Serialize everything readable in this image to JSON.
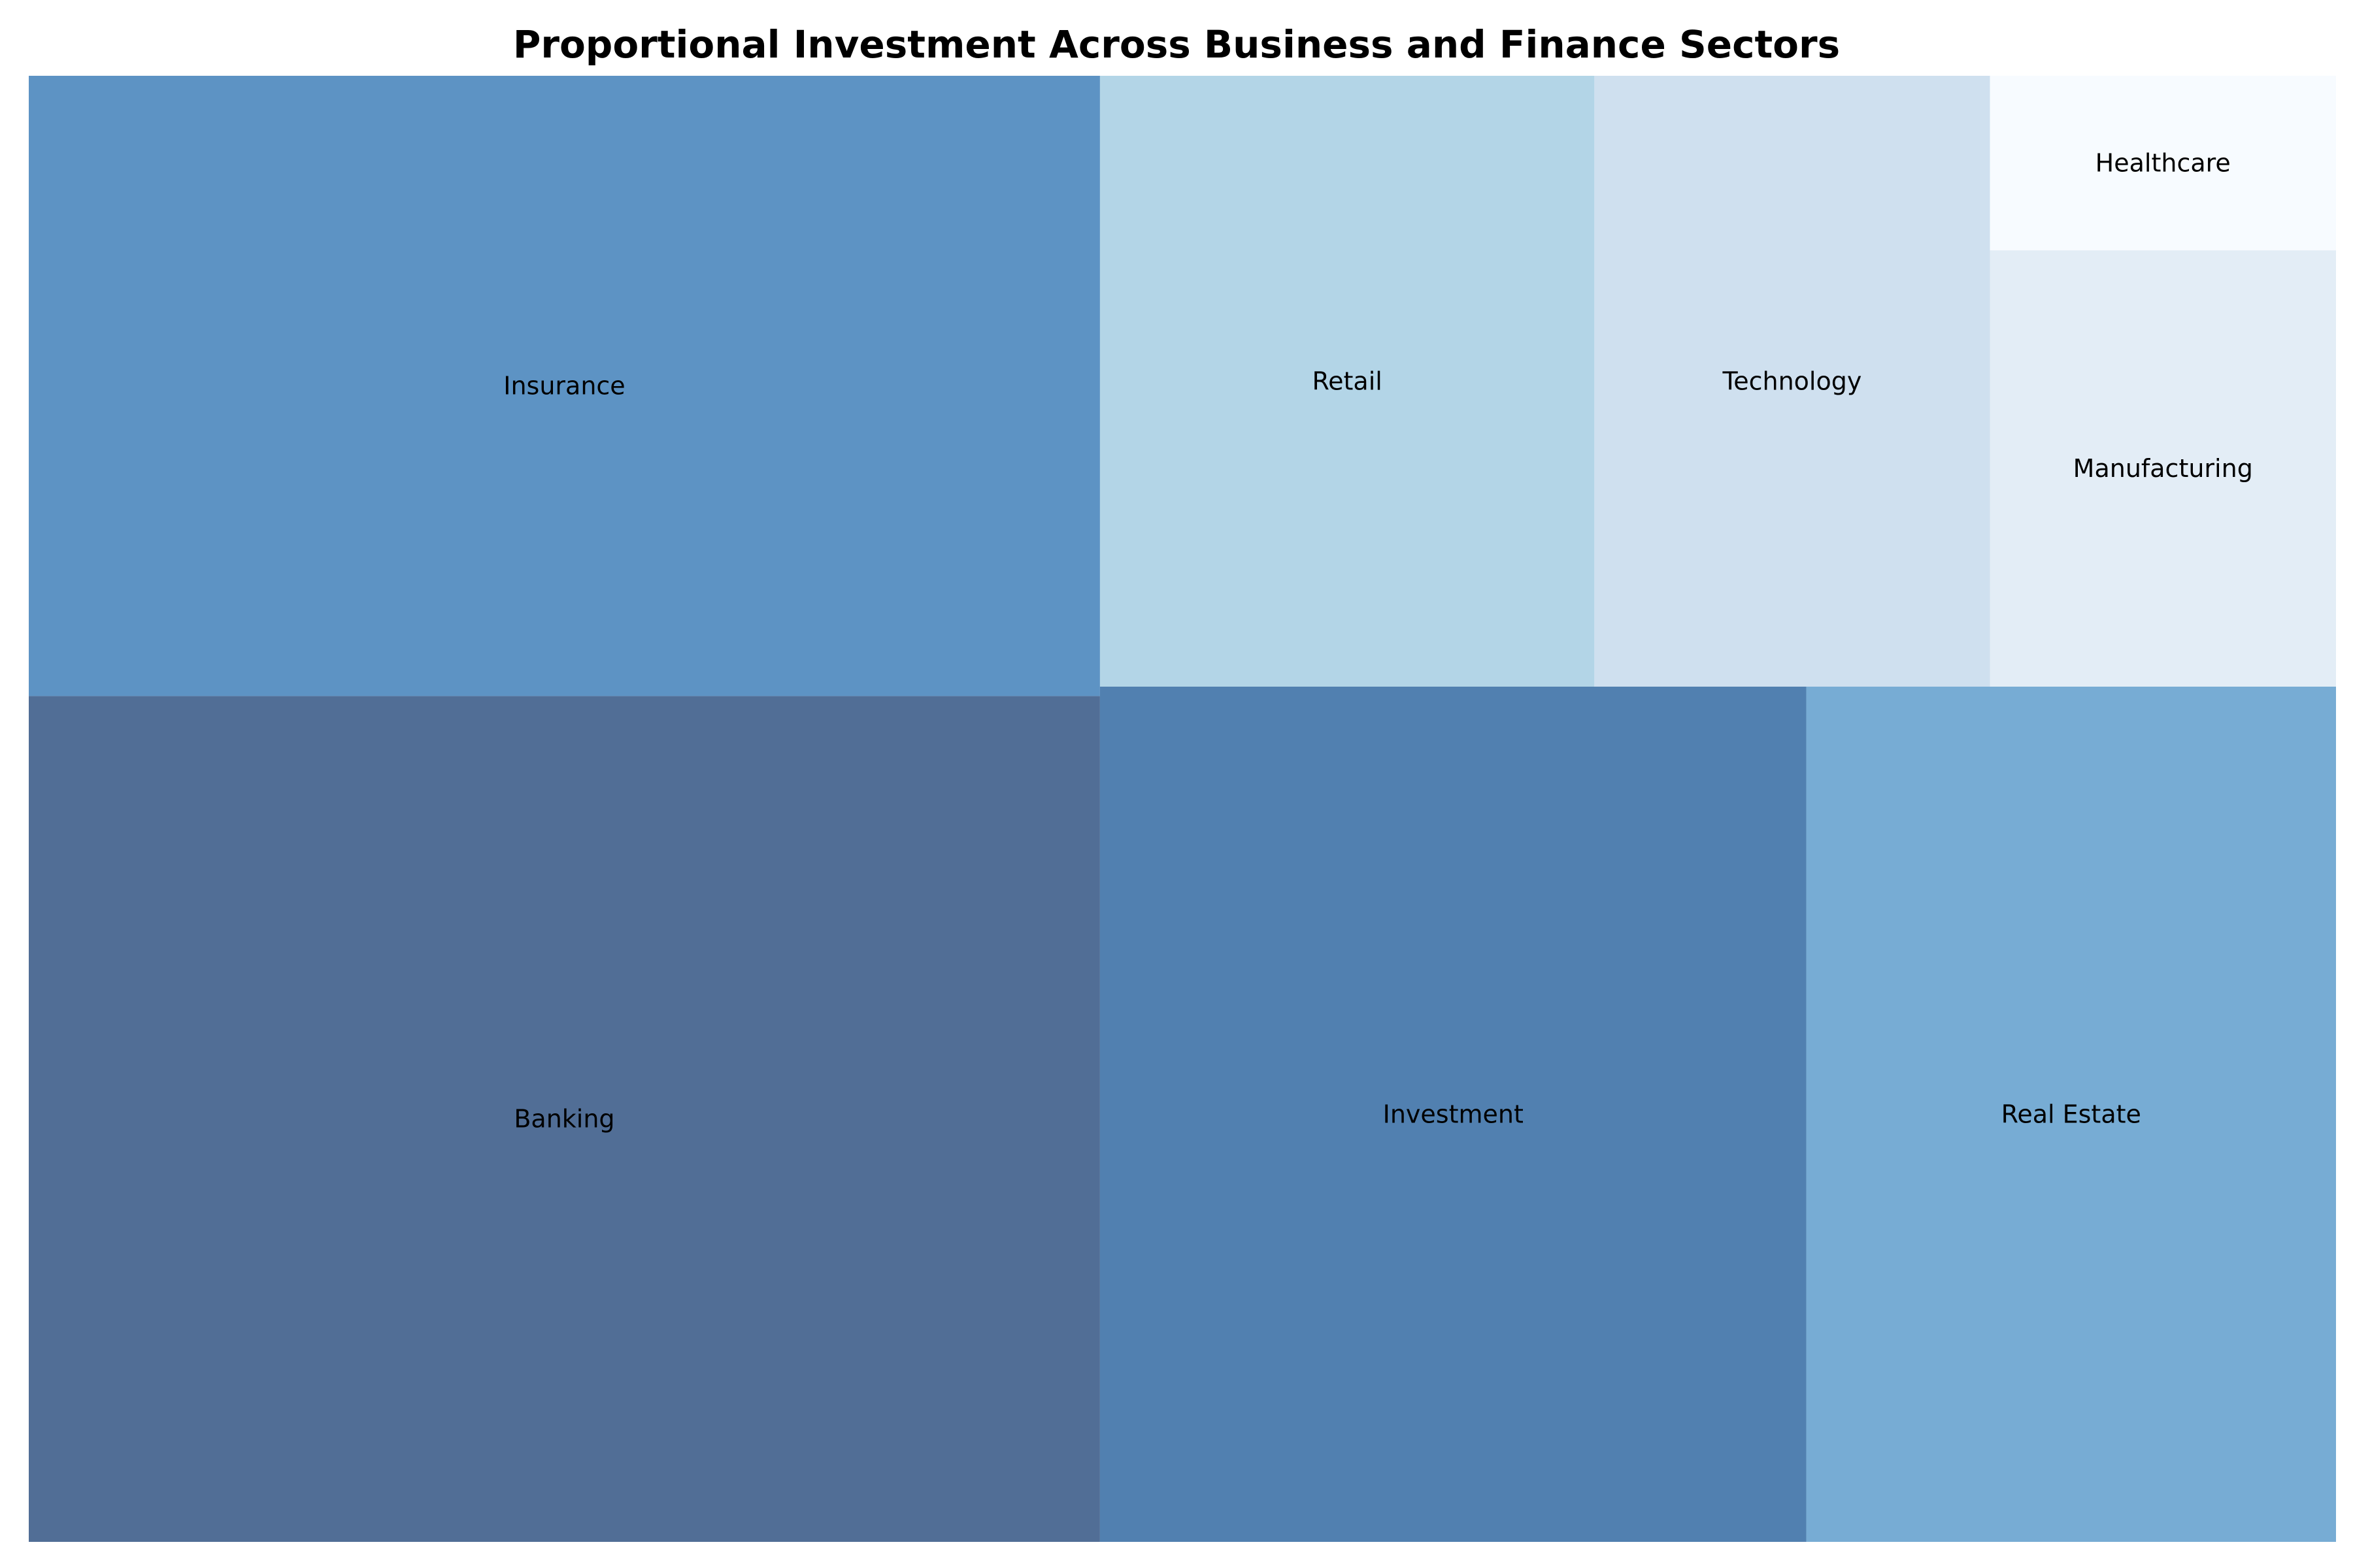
{
  "chart_data": {
    "type": "treemap",
    "title": "Proportional Investment Across Business and Finance Sectors",
    "categories": [
      "Banking",
      "Insurance",
      "Investment",
      "Real Estate",
      "Retail",
      "Technology",
      "Manufacturing",
      "Healthcare"
    ],
    "values": [
      30,
      22,
      20,
      15,
      10,
      8,
      5,
      2
    ],
    "colors": [
      "#516e96",
      "#5d93c4",
      "#5180b0",
      "#77acd4",
      "#b3d5e7",
      "#cfe0ef",
      "#e3edf6",
      "#f7fbff"
    ]
  }
}
